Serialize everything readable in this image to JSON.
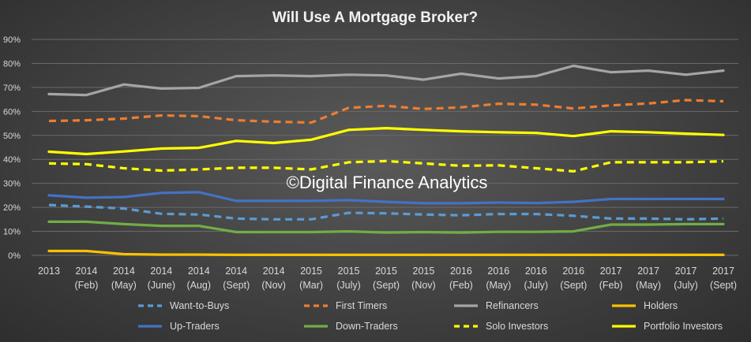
{
  "chart_data": {
    "type": "line",
    "title": "Will Use A Mortgage Broker?",
    "watermark": "©Digital Finance Analytics",
    "xlabel": "",
    "ylabel": "",
    "ylim": [
      0,
      90
    ],
    "yticks": [
      "0%",
      "10%",
      "20%",
      "30%",
      "40%",
      "50%",
      "60%",
      "70%",
      "80%",
      "90%"
    ],
    "grid": true,
    "legend_position": "bottom",
    "categories": [
      [
        "2013",
        ""
      ],
      [
        "2014",
        "(Feb)"
      ],
      [
        "2014",
        "(May)"
      ],
      [
        "2014",
        "(June)"
      ],
      [
        "2014",
        "(Aug)"
      ],
      [
        "2014",
        "(Sept)"
      ],
      [
        "2014",
        "(Nov)"
      ],
      [
        "2015",
        "(Mar)"
      ],
      [
        "2015",
        "(July)"
      ],
      [
        "2015",
        "(Sept)"
      ],
      [
        "2015",
        "(Nov)"
      ],
      [
        "2016",
        "(Feb)"
      ],
      [
        "2016",
        "(May)"
      ],
      [
        "2016",
        "(July)"
      ],
      [
        "2016",
        "(Sept)"
      ],
      [
        "2017",
        "(Feb)"
      ],
      [
        "2017",
        "(May)"
      ],
      [
        "2017",
        "(July)"
      ],
      [
        "2017",
        "(Sept)"
      ]
    ],
    "series": [
      {
        "name": "Want-to-Buys",
        "color": "#5b9bd5",
        "dash": true,
        "values": [
          21,
          20.3,
          19.5,
          17.3,
          17,
          15.3,
          15,
          15,
          17.7,
          17.5,
          17,
          16.7,
          17.2,
          17.2,
          16.5,
          15.3,
          15.3,
          15,
          15.3
        ]
      },
      {
        "name": "First Timers",
        "color": "#ed7d31",
        "dash": true,
        "values": [
          56,
          56.3,
          57,
          58.3,
          58,
          56.3,
          55.7,
          55.3,
          61.5,
          62.3,
          61,
          61.7,
          63.2,
          62.8,
          61.2,
          62.5,
          63.3,
          64.7,
          64.2
        ]
      },
      {
        "name": "Refinancers",
        "color": "#a5a5a5",
        "dash": false,
        "values": [
          67.2,
          66.8,
          71.2,
          69.5,
          69.8,
          74.7,
          75,
          74.7,
          75.3,
          75,
          73.2,
          75.7,
          73.7,
          74.7,
          79,
          76.3,
          77,
          75.3,
          77
        ]
      },
      {
        "name": "Holders",
        "color": "#ffc000",
        "dash": false,
        "values": [
          1.8,
          1.8,
          0.5,
          0.3,
          0.3,
          0.2,
          0.2,
          0.2,
          0.2,
          0.2,
          0.2,
          0.2,
          0.2,
          0.2,
          0.2,
          0.2,
          0.2,
          0.2,
          0.2
        ]
      },
      {
        "name": "Up-Traders",
        "color": "#4472c4",
        "dash": false,
        "values": [
          25,
          24,
          24.3,
          26,
          26.3,
          22.7,
          22.7,
          22.7,
          23,
          22.3,
          21.7,
          21.7,
          22,
          21.8,
          22.3,
          23.5,
          23.5,
          23.5,
          23.5
        ]
      },
      {
        "name": "Down-Traders",
        "color": "#70ad47",
        "dash": false,
        "values": [
          14,
          14,
          13,
          12.3,
          12.3,
          9.7,
          9.7,
          9.7,
          10,
          9.5,
          9.7,
          9.5,
          9.8,
          9.8,
          10,
          12.8,
          12.8,
          13,
          13
        ]
      },
      {
        "name": "Solo Investors",
        "color": "#ffff00",
        "dash": true,
        "values": [
          38.3,
          38,
          36.3,
          35.3,
          35.8,
          36.5,
          36.5,
          35.8,
          38.8,
          39.3,
          38.3,
          37.3,
          37.5,
          36.3,
          35,
          38.8,
          38.8,
          38.8,
          39.2
        ]
      },
      {
        "name": "Portfolio Investors",
        "color": "#ffff00",
        "dash": false,
        "values": [
          43.2,
          42.2,
          43.3,
          44.5,
          44.8,
          47.7,
          46.8,
          48.2,
          52.3,
          53,
          52.3,
          51.7,
          51.3,
          51,
          49.7,
          51.7,
          51.3,
          50.7,
          50.2
        ]
      }
    ]
  }
}
